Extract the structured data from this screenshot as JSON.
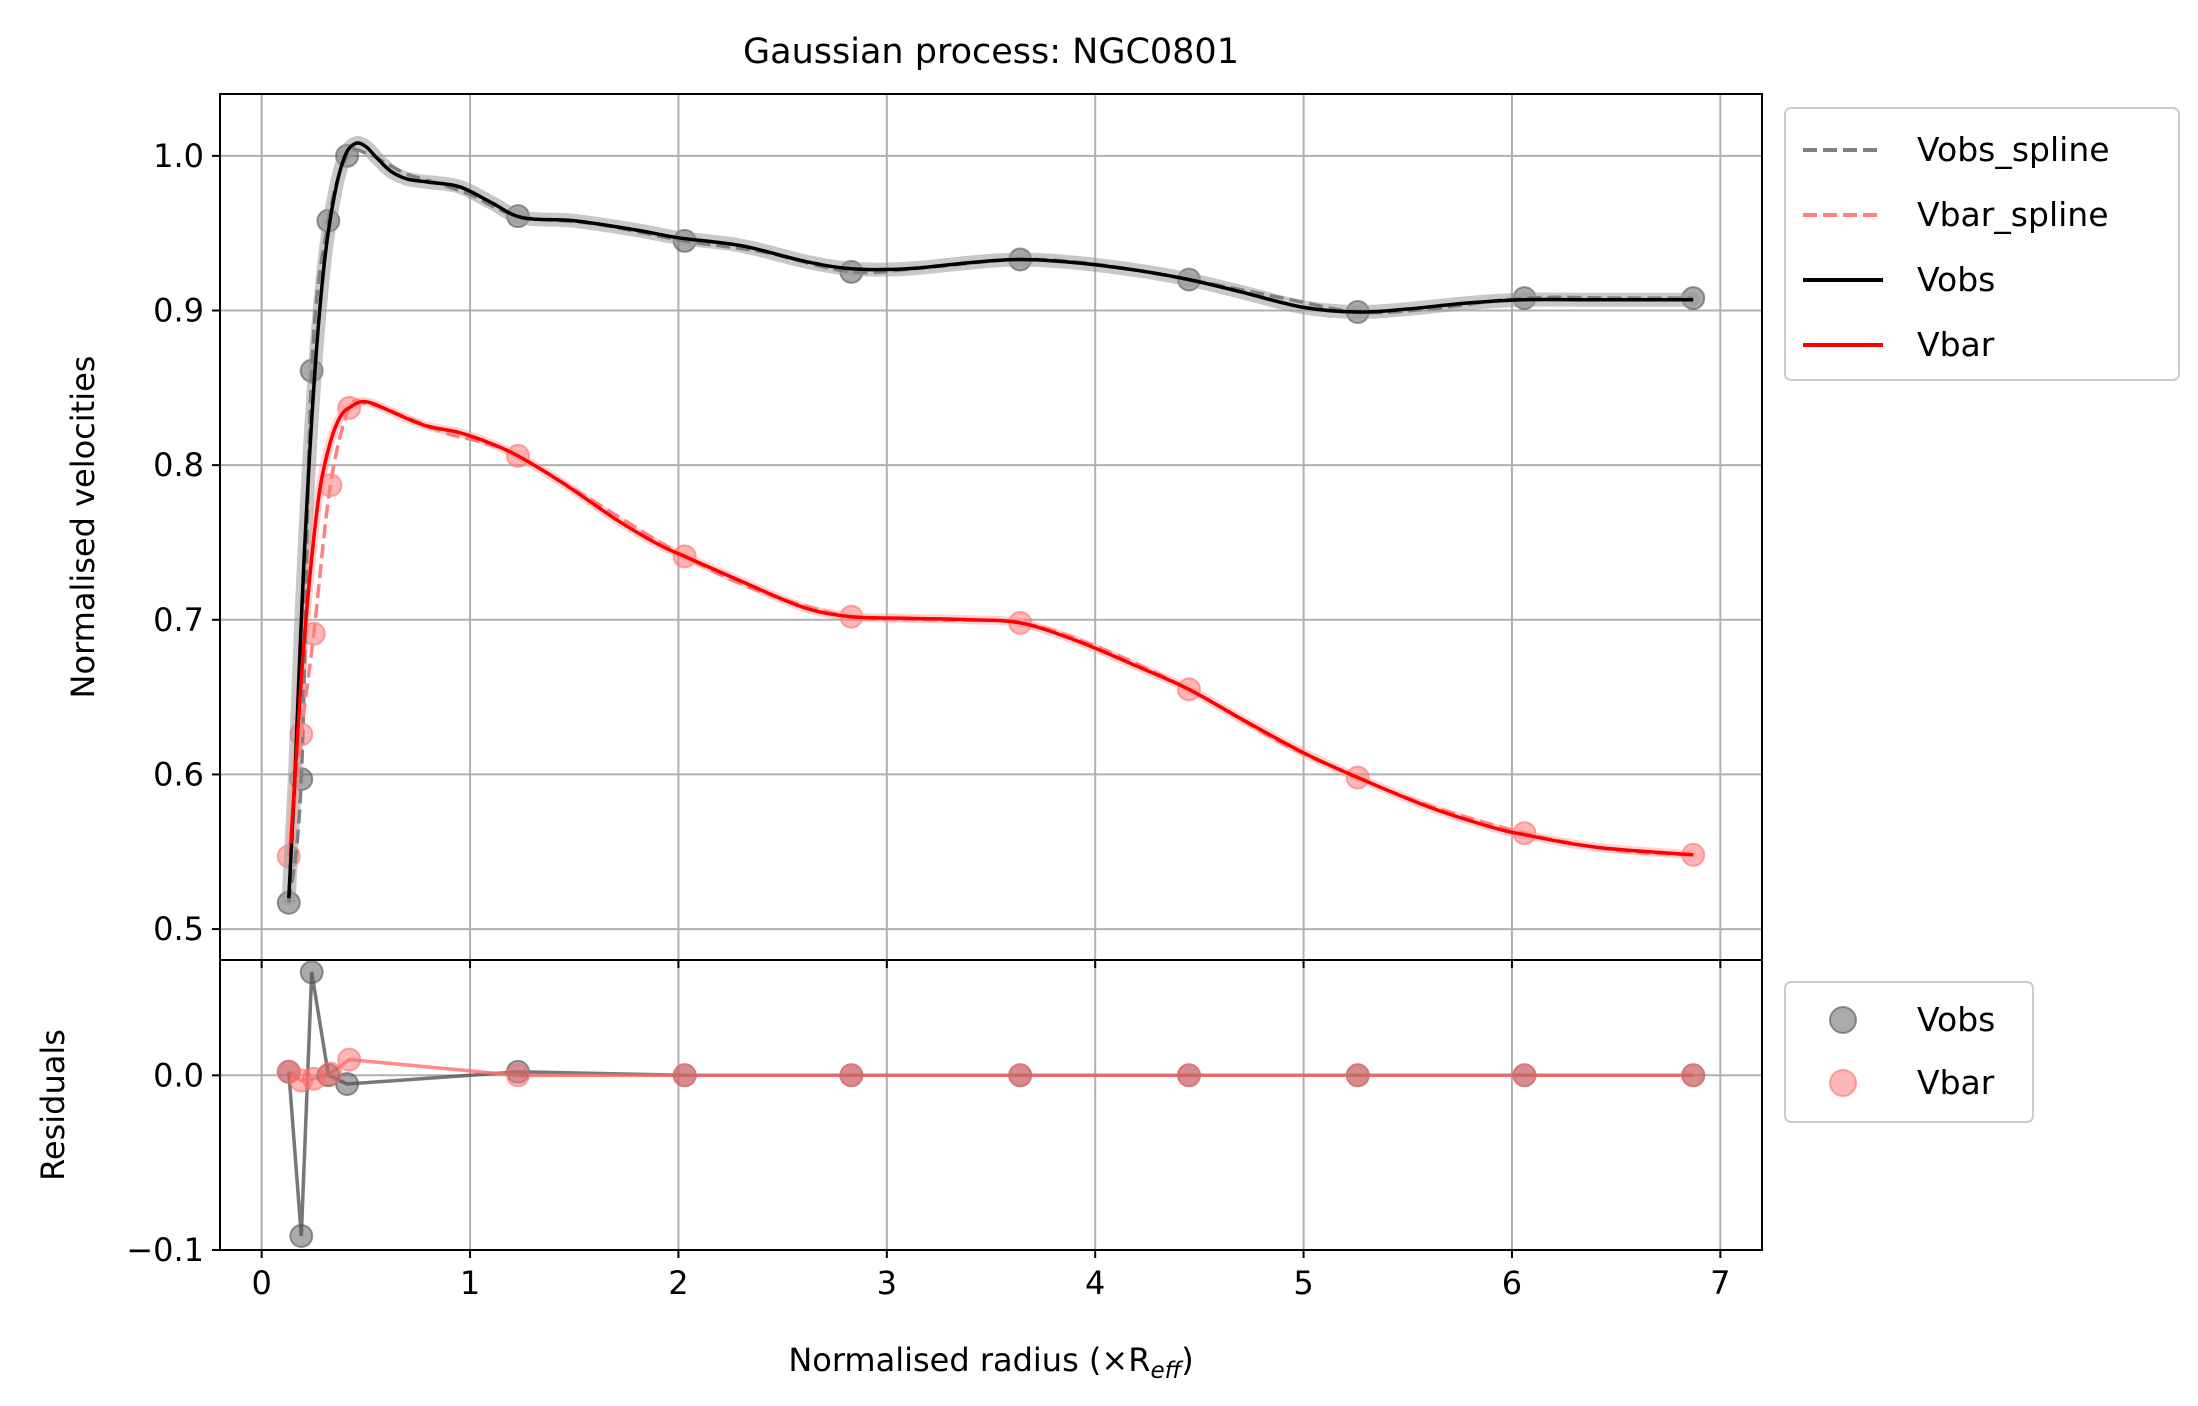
{
  "chart_data": [
    {
      "type": "line",
      "title": "Gaussian process: NGC0801",
      "ylabel": "Normalised velocities",
      "xlabel": "",
      "xlim": [
        -0.2,
        7.2
      ],
      "ylim": [
        0.48,
        1.04
      ],
      "xticks": [
        0,
        1,
        2,
        3,
        4,
        5,
        6,
        7
      ],
      "xtick_labels": [
        "",
        "",
        "",
        "",
        "",
        "",
        "",
        ""
      ],
      "yticks": [
        0.5,
        0.6,
        0.7,
        0.8,
        0.9,
        1.0
      ],
      "ytick_labels": [
        "0.5",
        "0.6",
        "0.7",
        "0.8",
        "0.9",
        "1.0"
      ],
      "grid": true,
      "legend_position": "outside-right-top",
      "legend": [
        {
          "label": "Vobs_spline",
          "style": "dashed",
          "color": "#808080"
        },
        {
          "label": "Vbar_spline",
          "style": "dashed",
          "color": "#ff8080"
        },
        {
          "label": "Vobs",
          "style": "solid",
          "color": "#000000"
        },
        {
          "label": "Vbar",
          "style": "solid",
          "color": "#ff0000"
        }
      ],
      "points": [
        {
          "name": "Vobs",
          "color": "#555555",
          "x": [
            0.13,
            0.19,
            0.24,
            0.32,
            0.41,
            1.23,
            2.03,
            2.83,
            3.64,
            4.45,
            5.26,
            6.06,
            6.87
          ],
          "y": [
            0.517,
            0.597,
            0.861,
            0.958,
            1.0,
            0.961,
            0.945,
            0.925,
            0.933,
            0.92,
            0.899,
            0.908,
            0.908
          ]
        },
        {
          "name": "Vbar",
          "color": "#ff6e6e",
          "x": [
            0.13,
            0.19,
            0.25,
            0.33,
            0.42,
            1.23,
            2.03,
            2.83,
            3.64,
            4.45,
            5.26,
            6.06,
            6.87
          ],
          "y": [
            0.547,
            0.626,
            0.691,
            0.787,
            0.837,
            0.806,
            0.741,
            0.702,
            0.698,
            0.655,
            0.598,
            0.562,
            0.548
          ]
        }
      ],
      "series": [
        {
          "name": "Vobs_spline",
          "style": "dashed",
          "color": "#808080",
          "x": [
            0.13,
            0.19,
            0.24,
            0.32,
            0.41,
            0.5,
            0.6,
            0.7,
            0.85,
            1.0,
            1.23,
            1.6,
            2.03,
            2.4,
            2.83,
            3.2,
            3.64,
            4.0,
            4.45,
            4.9,
            5.26,
            5.6,
            6.06,
            6.5,
            6.87
          ],
          "y": [
            0.517,
            0.597,
            0.861,
            0.958,
            1.0,
            1.002,
            0.995,
            0.988,
            0.982,
            0.975,
            0.961,
            0.956,
            0.945,
            0.938,
            0.925,
            0.928,
            0.933,
            0.93,
            0.92,
            0.908,
            0.899,
            0.901,
            0.908,
            0.908,
            0.908
          ]
        },
        {
          "name": "Vbar_spline",
          "style": "dashed",
          "color": "#ff8080",
          "x": [
            0.13,
            0.19,
            0.25,
            0.33,
            0.42,
            0.5,
            0.6,
            0.75,
            0.9,
            1.05,
            1.23,
            1.6,
            2.03,
            2.4,
            2.83,
            3.2,
            3.64,
            4.0,
            4.45,
            4.9,
            5.26,
            5.6,
            6.06,
            6.5,
            6.87
          ],
          "y": [
            0.547,
            0.626,
            0.691,
            0.787,
            0.837,
            0.84,
            0.836,
            0.828,
            0.82,
            0.815,
            0.806,
            0.776,
            0.741,
            0.718,
            0.702,
            0.7,
            0.698,
            0.683,
            0.655,
            0.62,
            0.598,
            0.58,
            0.562,
            0.551,
            0.548
          ]
        },
        {
          "name": "Vobs",
          "style": "solid",
          "color": "#000000",
          "x": [
            0.13,
            0.16,
            0.2,
            0.25,
            0.3,
            0.35,
            0.4,
            0.45,
            0.5,
            0.55,
            0.62,
            0.7,
            0.8,
            0.95,
            1.1,
            1.25,
            1.5,
            1.8,
            2.0,
            2.3,
            2.6,
            2.83,
            3.1,
            3.4,
            3.64,
            3.9,
            4.2,
            4.45,
            4.7,
            5.0,
            5.26,
            5.5,
            5.8,
            6.06,
            6.4,
            6.87
          ],
          "y": [
            0.52,
            0.6,
            0.73,
            0.85,
            0.93,
            0.975,
            1.0,
            1.008,
            1.006,
            0.999,
            0.99,
            0.985,
            0.983,
            0.98,
            0.97,
            0.96,
            0.958,
            0.952,
            0.947,
            0.942,
            0.932,
            0.927,
            0.927,
            0.931,
            0.933,
            0.931,
            0.926,
            0.92,
            0.912,
            0.902,
            0.899,
            0.901,
            0.905,
            0.907,
            0.907,
            0.907
          ]
        },
        {
          "name": "Vbar",
          "style": "solid",
          "color": "#ff0000",
          "x": [
            0.14,
            0.17,
            0.2,
            0.24,
            0.28,
            0.33,
            0.38,
            0.43,
            0.48,
            0.53,
            0.6,
            0.7,
            0.8,
            0.95,
            1.1,
            1.23,
            1.45,
            1.7,
            1.9,
            2.03,
            2.3,
            2.6,
            2.83,
            3.1,
            3.4,
            3.64,
            3.9,
            4.2,
            4.45,
            4.7,
            5.0,
            5.26,
            5.6,
            5.9,
            6.06,
            6.4,
            6.87
          ],
          "y": [
            0.555,
            0.62,
            0.68,
            0.74,
            0.785,
            0.815,
            0.832,
            0.838,
            0.841,
            0.84,
            0.836,
            0.83,
            0.825,
            0.821,
            0.814,
            0.806,
            0.788,
            0.765,
            0.749,
            0.741,
            0.725,
            0.708,
            0.702,
            0.701,
            0.7,
            0.698,
            0.687,
            0.67,
            0.655,
            0.636,
            0.614,
            0.598,
            0.579,
            0.566,
            0.561,
            0.553,
            0.548
          ]
        }
      ]
    },
    {
      "type": "scatter",
      "title": "",
      "ylabel": "Residuals",
      "xlabel": "Normalised radius (×R",
      "xlabel_sub": "eff",
      "xlabel_close": ")",
      "xlim": [
        -0.2,
        7.2
      ],
      "ylim": [
        -0.1,
        0.066
      ],
      "xticks": [
        0,
        1,
        2,
        3,
        4,
        5,
        6,
        7
      ],
      "xtick_labels": [
        "0",
        "1",
        "2",
        "3",
        "4",
        "5",
        "6",
        "7"
      ],
      "yticks": [
        -0.1,
        0.0
      ],
      "ytick_labels": [
        "−0.1",
        "0.0"
      ],
      "grid": true,
      "legend_position": "outside-right-top",
      "legend": [
        {
          "label": "Vobs",
          "marker": "circle",
          "color": "#555555"
        },
        {
          "label": "Vbar",
          "marker": "circle",
          "color": "#ff6e6e"
        }
      ],
      "series": [
        {
          "name": "Vobs",
          "color": "#555555",
          "line": true,
          "x": [
            0.13,
            0.19,
            0.24,
            0.32,
            0.41,
            1.23,
            2.03,
            2.83,
            3.64,
            4.45,
            5.26,
            6.06,
            6.87
          ],
          "y": [
            0.002,
            -0.092,
            0.059,
            0.0,
            -0.005,
            0.002,
            0.0,
            0.0,
            0.0,
            0.0,
            0.0,
            0.0,
            0.0
          ]
        },
        {
          "name": "Vbar",
          "color": "#ff6e6e",
          "line": true,
          "x": [
            0.13,
            0.19,
            0.25,
            0.33,
            0.42,
            1.23,
            2.03,
            2.83,
            3.64,
            4.45,
            5.26,
            6.06,
            6.87
          ],
          "y": [
            0.002,
            -0.003,
            -0.002,
            0.001,
            0.009,
            0.0,
            0.0,
            0.0,
            0.0,
            0.0,
            0.0,
            0.0,
            0.0
          ]
        }
      ]
    }
  ]
}
